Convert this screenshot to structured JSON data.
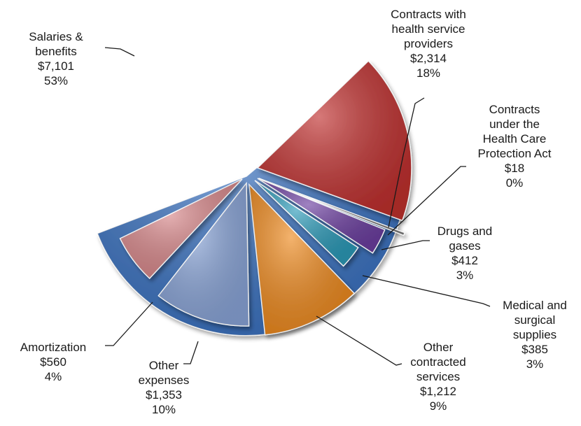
{
  "chart_data": {
    "type": "pie",
    "title": "",
    "slices": [
      {
        "name": "Salaries & benefits",
        "value": "$7,101",
        "amount": 7101,
        "percent": "53%",
        "color": "#3b73c2"
      },
      {
        "name": "Contracts with health service providers",
        "value": "$2,314",
        "amount": 2314,
        "percent": "18%",
        "color": "#c0302f"
      },
      {
        "name": "Contracts under the Health Care Protection Act",
        "value": "$18",
        "amount": 18,
        "percent": "0%",
        "color": "#7a7a7a"
      },
      {
        "name": "Drugs and gases",
        "value": "$412",
        "amount": 412,
        "percent": "3%",
        "color": "#6c3fa0"
      },
      {
        "name": "Medical and surgical supplies",
        "value": "$385",
        "amount": 385,
        "percent": "3%",
        "color": "#2c9ab8"
      },
      {
        "name": "Other contracted services",
        "value": "$1,212",
        "amount": 1212,
        "percent": "9%",
        "color": "#ee8a1f"
      },
      {
        "name": "Other expenses",
        "value": "$1,353",
        "amount": 1353,
        "percent": "10%",
        "color": "#8aa5d8"
      },
      {
        "name": "Amortization",
        "value": "$560",
        "amount": 560,
        "percent": "4%",
        "color": "#d9898c"
      }
    ]
  },
  "labels": [
    {
      "lines": [
        "Salaries &",
        "benefits"
      ]
    },
    {
      "lines": [
        "Contracts with",
        "health service",
        "providers"
      ]
    },
    {
      "lines": [
        "Contracts",
        "under the",
        "Health Care",
        "Protection Act"
      ]
    },
    {
      "lines": [
        "Drugs and",
        "gases"
      ]
    },
    {
      "lines": [
        "Medical and",
        "surgical",
        "supplies"
      ]
    },
    {
      "lines": [
        "Other",
        "contracted",
        "services"
      ]
    },
    {
      "lines": [
        "Other",
        "expenses"
      ]
    },
    {
      "lines": [
        "Amortization"
      ]
    }
  ]
}
